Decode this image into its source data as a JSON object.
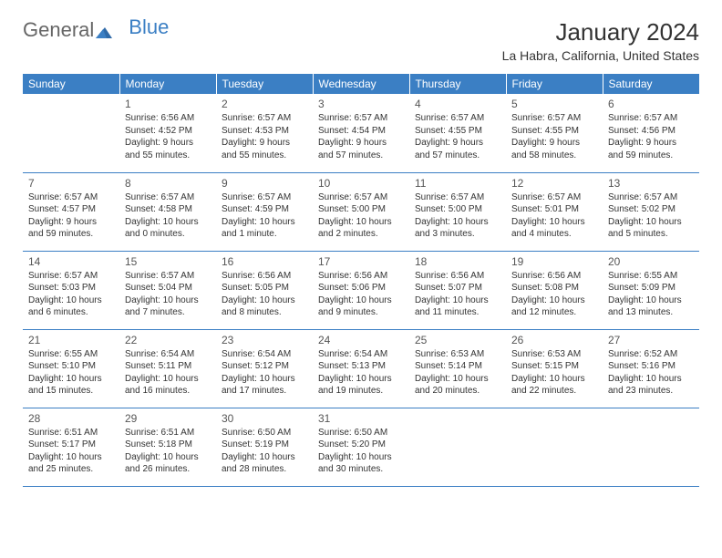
{
  "logo": {
    "general": "General",
    "blue": "Blue"
  },
  "header": {
    "month_title": "January 2024",
    "location": "La Habra, California, United States"
  },
  "colors": {
    "header_bg": "#3b7fc4",
    "header_text": "#ffffff",
    "shaded_bg": "#f0f0f0",
    "border": "#3b7fc4",
    "text": "#333333"
  },
  "typography": {
    "title_fontsize": 26,
    "location_fontsize": 14,
    "dayheader_fontsize": 12,
    "daynum_fontsize": 12,
    "body_fontsize": 10
  },
  "day_headers": [
    "Sunday",
    "Monday",
    "Tuesday",
    "Wednesday",
    "Thursday",
    "Friday",
    "Saturday"
  ],
  "weeks": [
    [
      {
        "shaded": false,
        "num": "",
        "sunrise": "",
        "sunset": "",
        "daylight1": "",
        "daylight2": ""
      },
      {
        "shaded": false,
        "num": "1",
        "sunrise": "Sunrise: 6:56 AM",
        "sunset": "Sunset: 4:52 PM",
        "daylight1": "Daylight: 9 hours",
        "daylight2": "and 55 minutes."
      },
      {
        "shaded": false,
        "num": "2",
        "sunrise": "Sunrise: 6:57 AM",
        "sunset": "Sunset: 4:53 PM",
        "daylight1": "Daylight: 9 hours",
        "daylight2": "and 55 minutes."
      },
      {
        "shaded": false,
        "num": "3",
        "sunrise": "Sunrise: 6:57 AM",
        "sunset": "Sunset: 4:54 PM",
        "daylight1": "Daylight: 9 hours",
        "daylight2": "and 57 minutes."
      },
      {
        "shaded": false,
        "num": "4",
        "sunrise": "Sunrise: 6:57 AM",
        "sunset": "Sunset: 4:55 PM",
        "daylight1": "Daylight: 9 hours",
        "daylight2": "and 57 minutes."
      },
      {
        "shaded": false,
        "num": "5",
        "sunrise": "Sunrise: 6:57 AM",
        "sunset": "Sunset: 4:55 PM",
        "daylight1": "Daylight: 9 hours",
        "daylight2": "and 58 minutes."
      },
      {
        "shaded": false,
        "num": "6",
        "sunrise": "Sunrise: 6:57 AM",
        "sunset": "Sunset: 4:56 PM",
        "daylight1": "Daylight: 9 hours",
        "daylight2": "and 59 minutes."
      }
    ],
    [
      {
        "shaded": true,
        "num": "7",
        "sunrise": "Sunrise: 6:57 AM",
        "sunset": "Sunset: 4:57 PM",
        "daylight1": "Daylight: 9 hours",
        "daylight2": "and 59 minutes."
      },
      {
        "shaded": true,
        "num": "8",
        "sunrise": "Sunrise: 6:57 AM",
        "sunset": "Sunset: 4:58 PM",
        "daylight1": "Daylight: 10 hours",
        "daylight2": "and 0 minutes."
      },
      {
        "shaded": true,
        "num": "9",
        "sunrise": "Sunrise: 6:57 AM",
        "sunset": "Sunset: 4:59 PM",
        "daylight1": "Daylight: 10 hours",
        "daylight2": "and 1 minute."
      },
      {
        "shaded": true,
        "num": "10",
        "sunrise": "Sunrise: 6:57 AM",
        "sunset": "Sunset: 5:00 PM",
        "daylight1": "Daylight: 10 hours",
        "daylight2": "and 2 minutes."
      },
      {
        "shaded": true,
        "num": "11",
        "sunrise": "Sunrise: 6:57 AM",
        "sunset": "Sunset: 5:00 PM",
        "daylight1": "Daylight: 10 hours",
        "daylight2": "and 3 minutes."
      },
      {
        "shaded": true,
        "num": "12",
        "sunrise": "Sunrise: 6:57 AM",
        "sunset": "Sunset: 5:01 PM",
        "daylight1": "Daylight: 10 hours",
        "daylight2": "and 4 minutes."
      },
      {
        "shaded": true,
        "num": "13",
        "sunrise": "Sunrise: 6:57 AM",
        "sunset": "Sunset: 5:02 PM",
        "daylight1": "Daylight: 10 hours",
        "daylight2": "and 5 minutes."
      }
    ],
    [
      {
        "shaded": false,
        "num": "14",
        "sunrise": "Sunrise: 6:57 AM",
        "sunset": "Sunset: 5:03 PM",
        "daylight1": "Daylight: 10 hours",
        "daylight2": "and 6 minutes."
      },
      {
        "shaded": false,
        "num": "15",
        "sunrise": "Sunrise: 6:57 AM",
        "sunset": "Sunset: 5:04 PM",
        "daylight1": "Daylight: 10 hours",
        "daylight2": "and 7 minutes."
      },
      {
        "shaded": false,
        "num": "16",
        "sunrise": "Sunrise: 6:56 AM",
        "sunset": "Sunset: 5:05 PM",
        "daylight1": "Daylight: 10 hours",
        "daylight2": "and 8 minutes."
      },
      {
        "shaded": false,
        "num": "17",
        "sunrise": "Sunrise: 6:56 AM",
        "sunset": "Sunset: 5:06 PM",
        "daylight1": "Daylight: 10 hours",
        "daylight2": "and 9 minutes."
      },
      {
        "shaded": false,
        "num": "18",
        "sunrise": "Sunrise: 6:56 AM",
        "sunset": "Sunset: 5:07 PM",
        "daylight1": "Daylight: 10 hours",
        "daylight2": "and 11 minutes."
      },
      {
        "shaded": false,
        "num": "19",
        "sunrise": "Sunrise: 6:56 AM",
        "sunset": "Sunset: 5:08 PM",
        "daylight1": "Daylight: 10 hours",
        "daylight2": "and 12 minutes."
      },
      {
        "shaded": false,
        "num": "20",
        "sunrise": "Sunrise: 6:55 AM",
        "sunset": "Sunset: 5:09 PM",
        "daylight1": "Daylight: 10 hours",
        "daylight2": "and 13 minutes."
      }
    ],
    [
      {
        "shaded": true,
        "num": "21",
        "sunrise": "Sunrise: 6:55 AM",
        "sunset": "Sunset: 5:10 PM",
        "daylight1": "Daylight: 10 hours",
        "daylight2": "and 15 minutes."
      },
      {
        "shaded": true,
        "num": "22",
        "sunrise": "Sunrise: 6:54 AM",
        "sunset": "Sunset: 5:11 PM",
        "daylight1": "Daylight: 10 hours",
        "daylight2": "and 16 minutes."
      },
      {
        "shaded": true,
        "num": "23",
        "sunrise": "Sunrise: 6:54 AM",
        "sunset": "Sunset: 5:12 PM",
        "daylight1": "Daylight: 10 hours",
        "daylight2": "and 17 minutes."
      },
      {
        "shaded": true,
        "num": "24",
        "sunrise": "Sunrise: 6:54 AM",
        "sunset": "Sunset: 5:13 PM",
        "daylight1": "Daylight: 10 hours",
        "daylight2": "and 19 minutes."
      },
      {
        "shaded": true,
        "num": "25",
        "sunrise": "Sunrise: 6:53 AM",
        "sunset": "Sunset: 5:14 PM",
        "daylight1": "Daylight: 10 hours",
        "daylight2": "and 20 minutes."
      },
      {
        "shaded": true,
        "num": "26",
        "sunrise": "Sunrise: 6:53 AM",
        "sunset": "Sunset: 5:15 PM",
        "daylight1": "Daylight: 10 hours",
        "daylight2": "and 22 minutes."
      },
      {
        "shaded": true,
        "num": "27",
        "sunrise": "Sunrise: 6:52 AM",
        "sunset": "Sunset: 5:16 PM",
        "daylight1": "Daylight: 10 hours",
        "daylight2": "and 23 minutes."
      }
    ],
    [
      {
        "shaded": false,
        "num": "28",
        "sunrise": "Sunrise: 6:51 AM",
        "sunset": "Sunset: 5:17 PM",
        "daylight1": "Daylight: 10 hours",
        "daylight2": "and 25 minutes."
      },
      {
        "shaded": false,
        "num": "29",
        "sunrise": "Sunrise: 6:51 AM",
        "sunset": "Sunset: 5:18 PM",
        "daylight1": "Daylight: 10 hours",
        "daylight2": "and 26 minutes."
      },
      {
        "shaded": false,
        "num": "30",
        "sunrise": "Sunrise: 6:50 AM",
        "sunset": "Sunset: 5:19 PM",
        "daylight1": "Daylight: 10 hours",
        "daylight2": "and 28 minutes."
      },
      {
        "shaded": false,
        "num": "31",
        "sunrise": "Sunrise: 6:50 AM",
        "sunset": "Sunset: 5:20 PM",
        "daylight1": "Daylight: 10 hours",
        "daylight2": "and 30 minutes."
      },
      {
        "shaded": false,
        "num": "",
        "sunrise": "",
        "sunset": "",
        "daylight1": "",
        "daylight2": ""
      },
      {
        "shaded": false,
        "num": "",
        "sunrise": "",
        "sunset": "",
        "daylight1": "",
        "daylight2": ""
      },
      {
        "shaded": false,
        "num": "",
        "sunrise": "",
        "sunset": "",
        "daylight1": "",
        "daylight2": ""
      }
    ]
  ]
}
